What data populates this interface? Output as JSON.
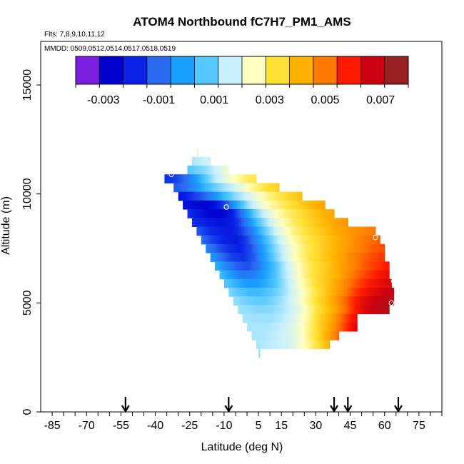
{
  "chart_data": {
    "type": "heatmap",
    "title": "ATOM4 Northbound fC7H7_PM1_AMS",
    "flights_label": "Flts: 7,8,9,10,11,12",
    "dates_label": "MMDD: 0509,0512,0514,0517,0518,0519",
    "xlabel": "Latitude (deg N)",
    "ylabel": "Altitude (m)",
    "xlim": [
      -90,
      85
    ],
    "ylim": [
      0,
      17000
    ],
    "x_ticks": [
      -85,
      -70,
      -55,
      -40,
      -25,
      -10,
      5,
      15,
      30,
      45,
      60,
      75
    ],
    "y_ticks": [
      0,
      5000,
      10000,
      15000
    ],
    "colorbar": {
      "range": [
        -0.004,
        0.008
      ],
      "ticks": [
        -0.003,
        -0.001,
        0.001,
        0.003,
        0.005,
        0.007
      ],
      "tick_labels": [
        "-0.003",
        "-0.001",
        "0.001",
        "0.003",
        "0.005",
        "0.007"
      ],
      "colors": [
        "#7a1fe0",
        "#0000cc",
        "#0a22e6",
        "#2a6cf0",
        "#1aa0ff",
        "#55c8ff",
        "#c8f0ff",
        "#ffffc0",
        "#ffe033",
        "#ffb000",
        "#ff7a00",
        "#ff1a00",
        "#cc0010",
        "#992020"
      ]
    },
    "profile_arrows_lat": [
      -53,
      -8,
      38,
      44,
      66
    ],
    "field": [
      {
        "alt_bottom": 11700,
        "alt_top": 12100,
        "lat_start": -22,
        "lat_end": -22,
        "values": [
          0.002
        ]
      },
      {
        "alt_bottom": 11300,
        "alt_top": 11700,
        "lat_start": -24,
        "lat_end": -16,
        "values": [
          0.0013,
          0.0014,
          0.0015,
          0.0016,
          0.0017
        ]
      },
      {
        "alt_bottom": 10900,
        "alt_top": 11300,
        "lat_start": -26,
        "lat_end": -8,
        "values": [
          0.0006,
          0.0008,
          0.001,
          0.0014,
          0.0018,
          0.0022
        ]
      },
      {
        "alt_bottom": 10500,
        "alt_top": 10900,
        "lat_start": -36,
        "lat_end": 4,
        "values": [
          -0.002,
          -0.0018,
          -0.0012,
          -0.0004,
          0.0006,
          0.0014,
          0.002,
          0.0025,
          0.003,
          0.0032
        ]
      },
      {
        "alt_bottom": 10100,
        "alt_top": 10500,
        "lat_start": -32,
        "lat_end": 14,
        "values": [
          -0.0015,
          -0.0012,
          -0.0006,
          0.0002,
          0.0008,
          0.0013,
          0.0018,
          0.0024,
          0.003,
          0.0034,
          0.0037
        ]
      },
      {
        "alt_bottom": 9700,
        "alt_top": 10100,
        "lat_start": -30,
        "lat_end": 24,
        "values": [
          -0.0025,
          -0.002,
          -0.0015,
          -0.0008,
          0.0002,
          0.001,
          0.0016,
          0.0022,
          0.0028,
          0.0032,
          0.0036,
          0.004
        ]
      },
      {
        "alt_bottom": 9300,
        "alt_top": 9700,
        "lat_start": -28,
        "lat_end": 34,
        "values": [
          -0.0025,
          -0.0028,
          -0.003,
          -0.0025,
          -0.0015,
          0.0,
          0.0012,
          0.002,
          0.0026,
          0.003,
          0.0034,
          0.0038,
          0.0042,
          0.0045
        ]
      },
      {
        "alt_bottom": 8900,
        "alt_top": 9300,
        "lat_start": -26,
        "lat_end": 38,
        "values": [
          -0.002,
          -0.0025,
          -0.003,
          -0.003,
          -0.0022,
          -0.0008,
          0.0008,
          0.0018,
          0.0025,
          0.003,
          0.0034,
          0.0038,
          0.0042,
          0.0045
        ]
      },
      {
        "alt_bottom": 8500,
        "alt_top": 8900,
        "lat_start": -24,
        "lat_end": 44,
        "values": [
          -0.002,
          -0.0022,
          -0.0025,
          -0.0025,
          -0.002,
          -0.0008,
          0.0006,
          0.0016,
          0.0024,
          0.003,
          0.0034,
          0.0038,
          0.0042,
          0.0045,
          0.0048
        ]
      },
      {
        "alt_bottom": 8100,
        "alt_top": 8500,
        "lat_start": -22,
        "lat_end": 56,
        "values": [
          -0.0015,
          -0.002,
          -0.0022,
          -0.0024,
          -0.0018,
          -0.0008,
          0.0006,
          0.0016,
          0.0024,
          0.003,
          0.0034,
          0.0038,
          0.0042,
          0.0045,
          0.0048,
          0.005,
          0.0052
        ]
      },
      {
        "alt_bottom": 7700,
        "alt_top": 8100,
        "lat_start": -20,
        "lat_end": 58,
        "values": [
          -0.0012,
          -0.0018,
          -0.0022,
          -0.0024,
          -0.0018,
          -0.0006,
          0.0006,
          0.0016,
          0.0024,
          0.003,
          0.0034,
          0.0038,
          0.0042,
          0.0046,
          0.005,
          0.0053,
          0.0055
        ]
      },
      {
        "alt_bottom": 7300,
        "alt_top": 7700,
        "lat_start": -18,
        "lat_end": 60,
        "values": [
          -0.0008,
          -0.0015,
          -0.002,
          -0.0022,
          -0.0016,
          -0.0004,
          0.0008,
          0.0017,
          0.0025,
          0.0031,
          0.0035,
          0.004,
          0.0044,
          0.0048,
          0.0052,
          0.0055,
          0.0057
        ]
      },
      {
        "alt_bottom": 6900,
        "alt_top": 7300,
        "lat_start": -16,
        "lat_end": 60,
        "values": [
          -0.0004,
          -0.0012,
          -0.0018,
          -0.002,
          -0.0014,
          -0.0002,
          0.0009,
          0.0018,
          0.0026,
          0.0032,
          0.0036,
          0.0041,
          0.0045,
          0.005,
          0.0054,
          0.0057,
          0.0059
        ]
      },
      {
        "alt_bottom": 6500,
        "alt_top": 6900,
        "lat_start": -14,
        "lat_end": 62,
        "values": [
          0.0,
          -0.0008,
          -0.0014,
          -0.0016,
          -0.001,
          0.0,
          0.001,
          0.0019,
          0.0027,
          0.0033,
          0.0037,
          0.0042,
          0.0047,
          0.0052,
          0.0056,
          0.0059,
          0.0062
        ]
      },
      {
        "alt_bottom": 6100,
        "alt_top": 6500,
        "lat_start": -12,
        "lat_end": 62,
        "values": [
          0.0003,
          -0.0004,
          -0.001,
          -0.001,
          -0.0005,
          0.0003,
          0.0012,
          0.002,
          0.0028,
          0.0034,
          0.0038,
          0.0043,
          0.0048,
          0.0054,
          0.0058,
          0.0062,
          0.0065
        ]
      },
      {
        "alt_bottom": 5700,
        "alt_top": 6100,
        "lat_start": -10,
        "lat_end": 63,
        "values": [
          0.0006,
          0.0001,
          -0.0004,
          -0.0004,
          0.0,
          0.0006,
          0.0014,
          0.0022,
          0.0029,
          0.0035,
          0.004,
          0.0046,
          0.0052,
          0.0058,
          0.0062,
          0.0066,
          0.0068
        ]
      },
      {
        "alt_bottom": 5300,
        "alt_top": 5700,
        "lat_start": -8,
        "lat_end": 64,
        "values": [
          0.0009,
          0.0006,
          0.0003,
          0.0003,
          0.0006,
          0.001,
          0.0016,
          0.0023,
          0.003,
          0.0036,
          0.0042,
          0.0049,
          0.0056,
          0.0062,
          0.0066,
          0.007,
          0.0072
        ]
      },
      {
        "alt_bottom": 4900,
        "alt_top": 5300,
        "lat_start": -6,
        "lat_end": 64,
        "values": [
          0.0011,
          0.0009,
          0.0007,
          0.0007,
          0.0009,
          0.0013,
          0.0018,
          0.0025,
          0.0032,
          0.0038,
          0.0045,
          0.0053,
          0.006,
          0.0066,
          0.007,
          0.0073,
          0.0075
        ]
      },
      {
        "alt_bottom": 4500,
        "alt_top": 4900,
        "lat_start": -4,
        "lat_end": 62,
        "values": [
          0.0012,
          0.0011,
          0.001,
          0.001,
          0.0012,
          0.0015,
          0.002,
          0.0027,
          0.0034,
          0.004,
          0.0048,
          0.0056,
          0.0064,
          0.007,
          0.0073,
          0.0075
        ]
      },
      {
        "alt_bottom": 4100,
        "alt_top": 4500,
        "lat_start": -2,
        "lat_end": 48,
        "values": [
          0.0013,
          0.0012,
          0.0012,
          0.0012,
          0.0014,
          0.0017,
          0.0022,
          0.0028,
          0.0035,
          0.0042,
          0.005,
          0.0058,
          0.0065
        ]
      },
      {
        "alt_bottom": 3700,
        "alt_top": 4100,
        "lat_start": 0,
        "lat_end": 48,
        "values": [
          0.0013,
          0.0013,
          0.0013,
          0.0014,
          0.0016,
          0.0019,
          0.0024,
          0.003,
          0.0037,
          0.0044,
          0.0052,
          0.006,
          0.0068
        ]
      },
      {
        "alt_bottom": 3300,
        "alt_top": 3700,
        "lat_start": 2,
        "lat_end": 40,
        "values": [
          0.0013,
          0.0013,
          0.0014,
          0.0015,
          0.0017,
          0.002,
          0.0025,
          0.0031,
          0.0038,
          0.0046,
          0.0054
        ]
      },
      {
        "alt_bottom": 2900,
        "alt_top": 3300,
        "lat_start": 4,
        "lat_end": 36,
        "values": [
          0.0013,
          0.0014,
          0.0015,
          0.0016,
          0.0019,
          0.0023,
          0.0029,
          0.0035,
          0.0042
        ]
      },
      {
        "alt_bottom": 2500,
        "alt_top": 2900,
        "lat_start": 5,
        "lat_end": 5,
        "values": [
          0.0012
        ]
      }
    ],
    "markers": [
      {
        "lat": -33,
        "alt": 10900
      },
      {
        "lat": -9,
        "alt": 9400
      },
      {
        "lat": 56,
        "alt": 8000
      },
      {
        "lat": 63,
        "alt": 5000
      },
      {
        "lat": 64,
        "alt": 6000
      }
    ]
  }
}
